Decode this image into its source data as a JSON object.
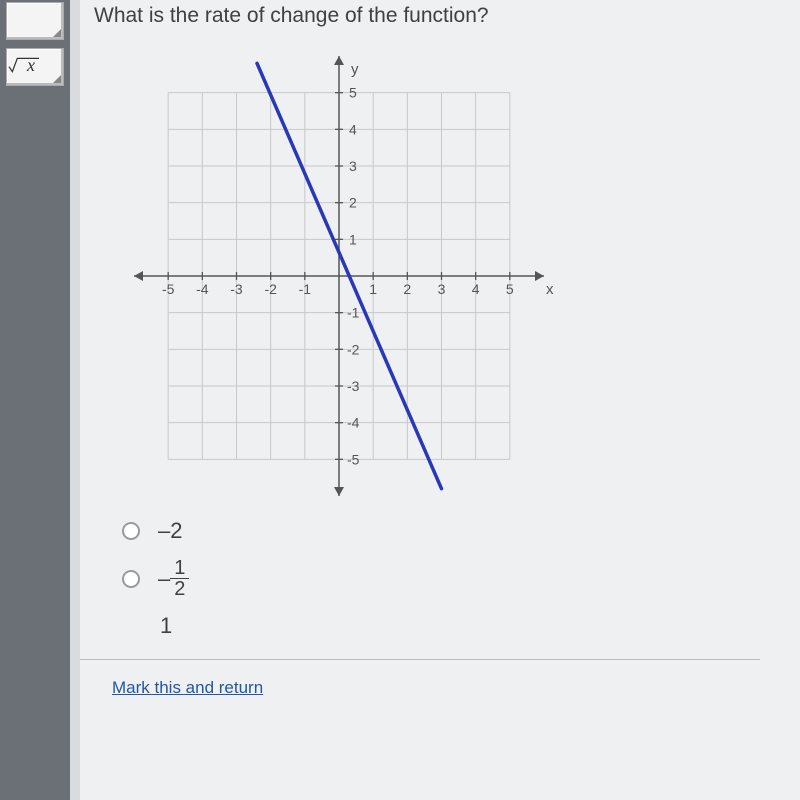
{
  "question": "What is the rate of change of the function?",
  "graph": {
    "type": "line",
    "xlim": [
      -5,
      5
    ],
    "ylim": [
      -5,
      5
    ],
    "xtick_step": 1,
    "ytick_step": 1,
    "x_labels": [
      "-5",
      "-4",
      "-3",
      "-2",
      "-1",
      "1",
      "2",
      "3",
      "4",
      "5"
    ],
    "y_labels_pos": [
      "1",
      "2",
      "3",
      "4",
      "5"
    ],
    "y_labels_neg": [
      "-1",
      "-2",
      "-3",
      "-4",
      "-5"
    ],
    "x_axis_label": "x",
    "y_axis_label": "y",
    "grid_color": "#c8c8c8",
    "axis_color": "#555555",
    "background_color": "#eef0f2",
    "line": {
      "points": [
        [
          -2.4,
          5.8
        ],
        [
          3.0,
          -5.8
        ]
      ],
      "color": "#2838b8",
      "width": 3.5
    }
  },
  "answers": {
    "opt1": {
      "text": "–2",
      "is_fraction": false
    },
    "opt2": {
      "prefix": "–",
      "num": "1",
      "den": "2",
      "is_fraction": true
    },
    "opt3": {
      "text": "1",
      "is_fraction": false
    }
  },
  "footer_link": "Mark this and return",
  "sidebar": {
    "sqrt_tool_label": "x"
  }
}
